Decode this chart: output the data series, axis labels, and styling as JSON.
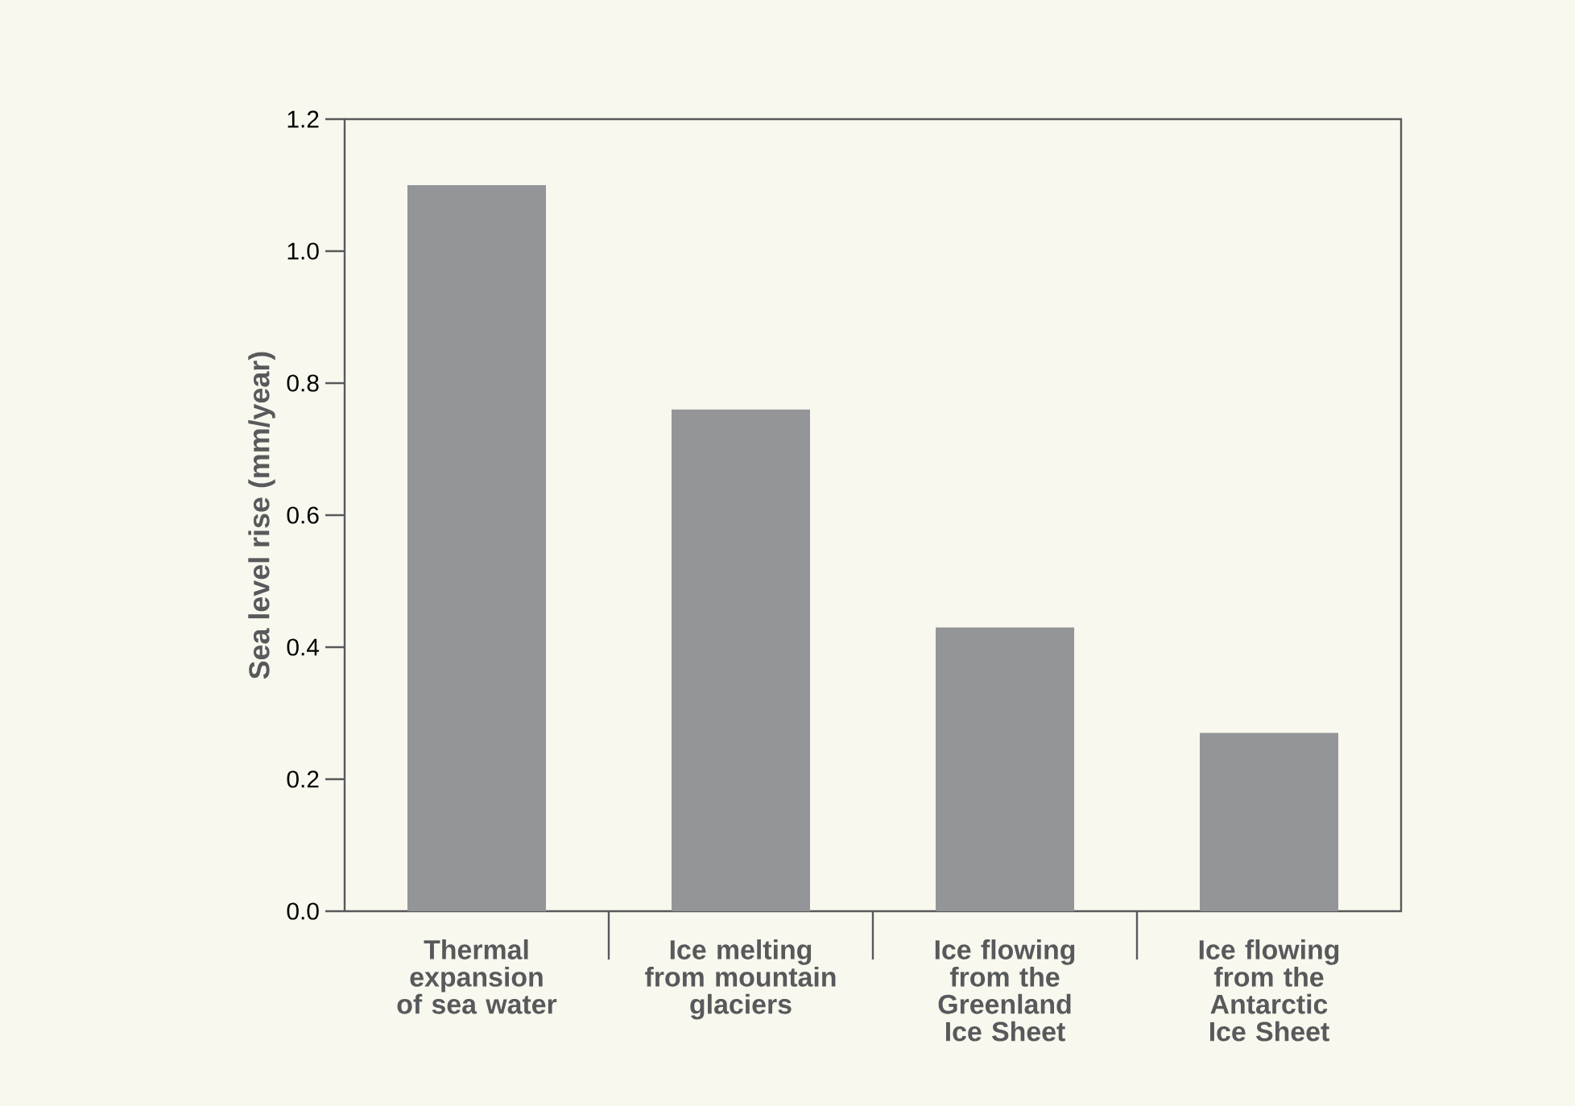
{
  "chart_data": {
    "type": "bar",
    "ylabel": "Sea level rise (mm/year)",
    "categories": [
      "Thermal expansion of sea water",
      "Ice melting from mountain glaciers",
      "Ice flowing from the Greenland Ice Sheet",
      "Ice flowing from the Antarctic Ice Sheet"
    ],
    "values": [
      1.1,
      0.76,
      0.43,
      0.27
    ],
    "color": "#939598",
    "ylim": [
      0,
      1.2
    ],
    "yticks": [
      {
        "value": 0,
        "label": "0.0"
      },
      {
        "value": 0.2,
        "label": "0.2"
      },
      {
        "value": 0.4,
        "label": "0.4"
      },
      {
        "value": 0.6,
        "label": "0.6"
      },
      {
        "value": 0.8,
        "label": "0.8"
      },
      {
        "value": 1.0,
        "label": "1.0"
      },
      {
        "value": 1.2,
        "label": "1.2"
      }
    ],
    "grid": false
  }
}
